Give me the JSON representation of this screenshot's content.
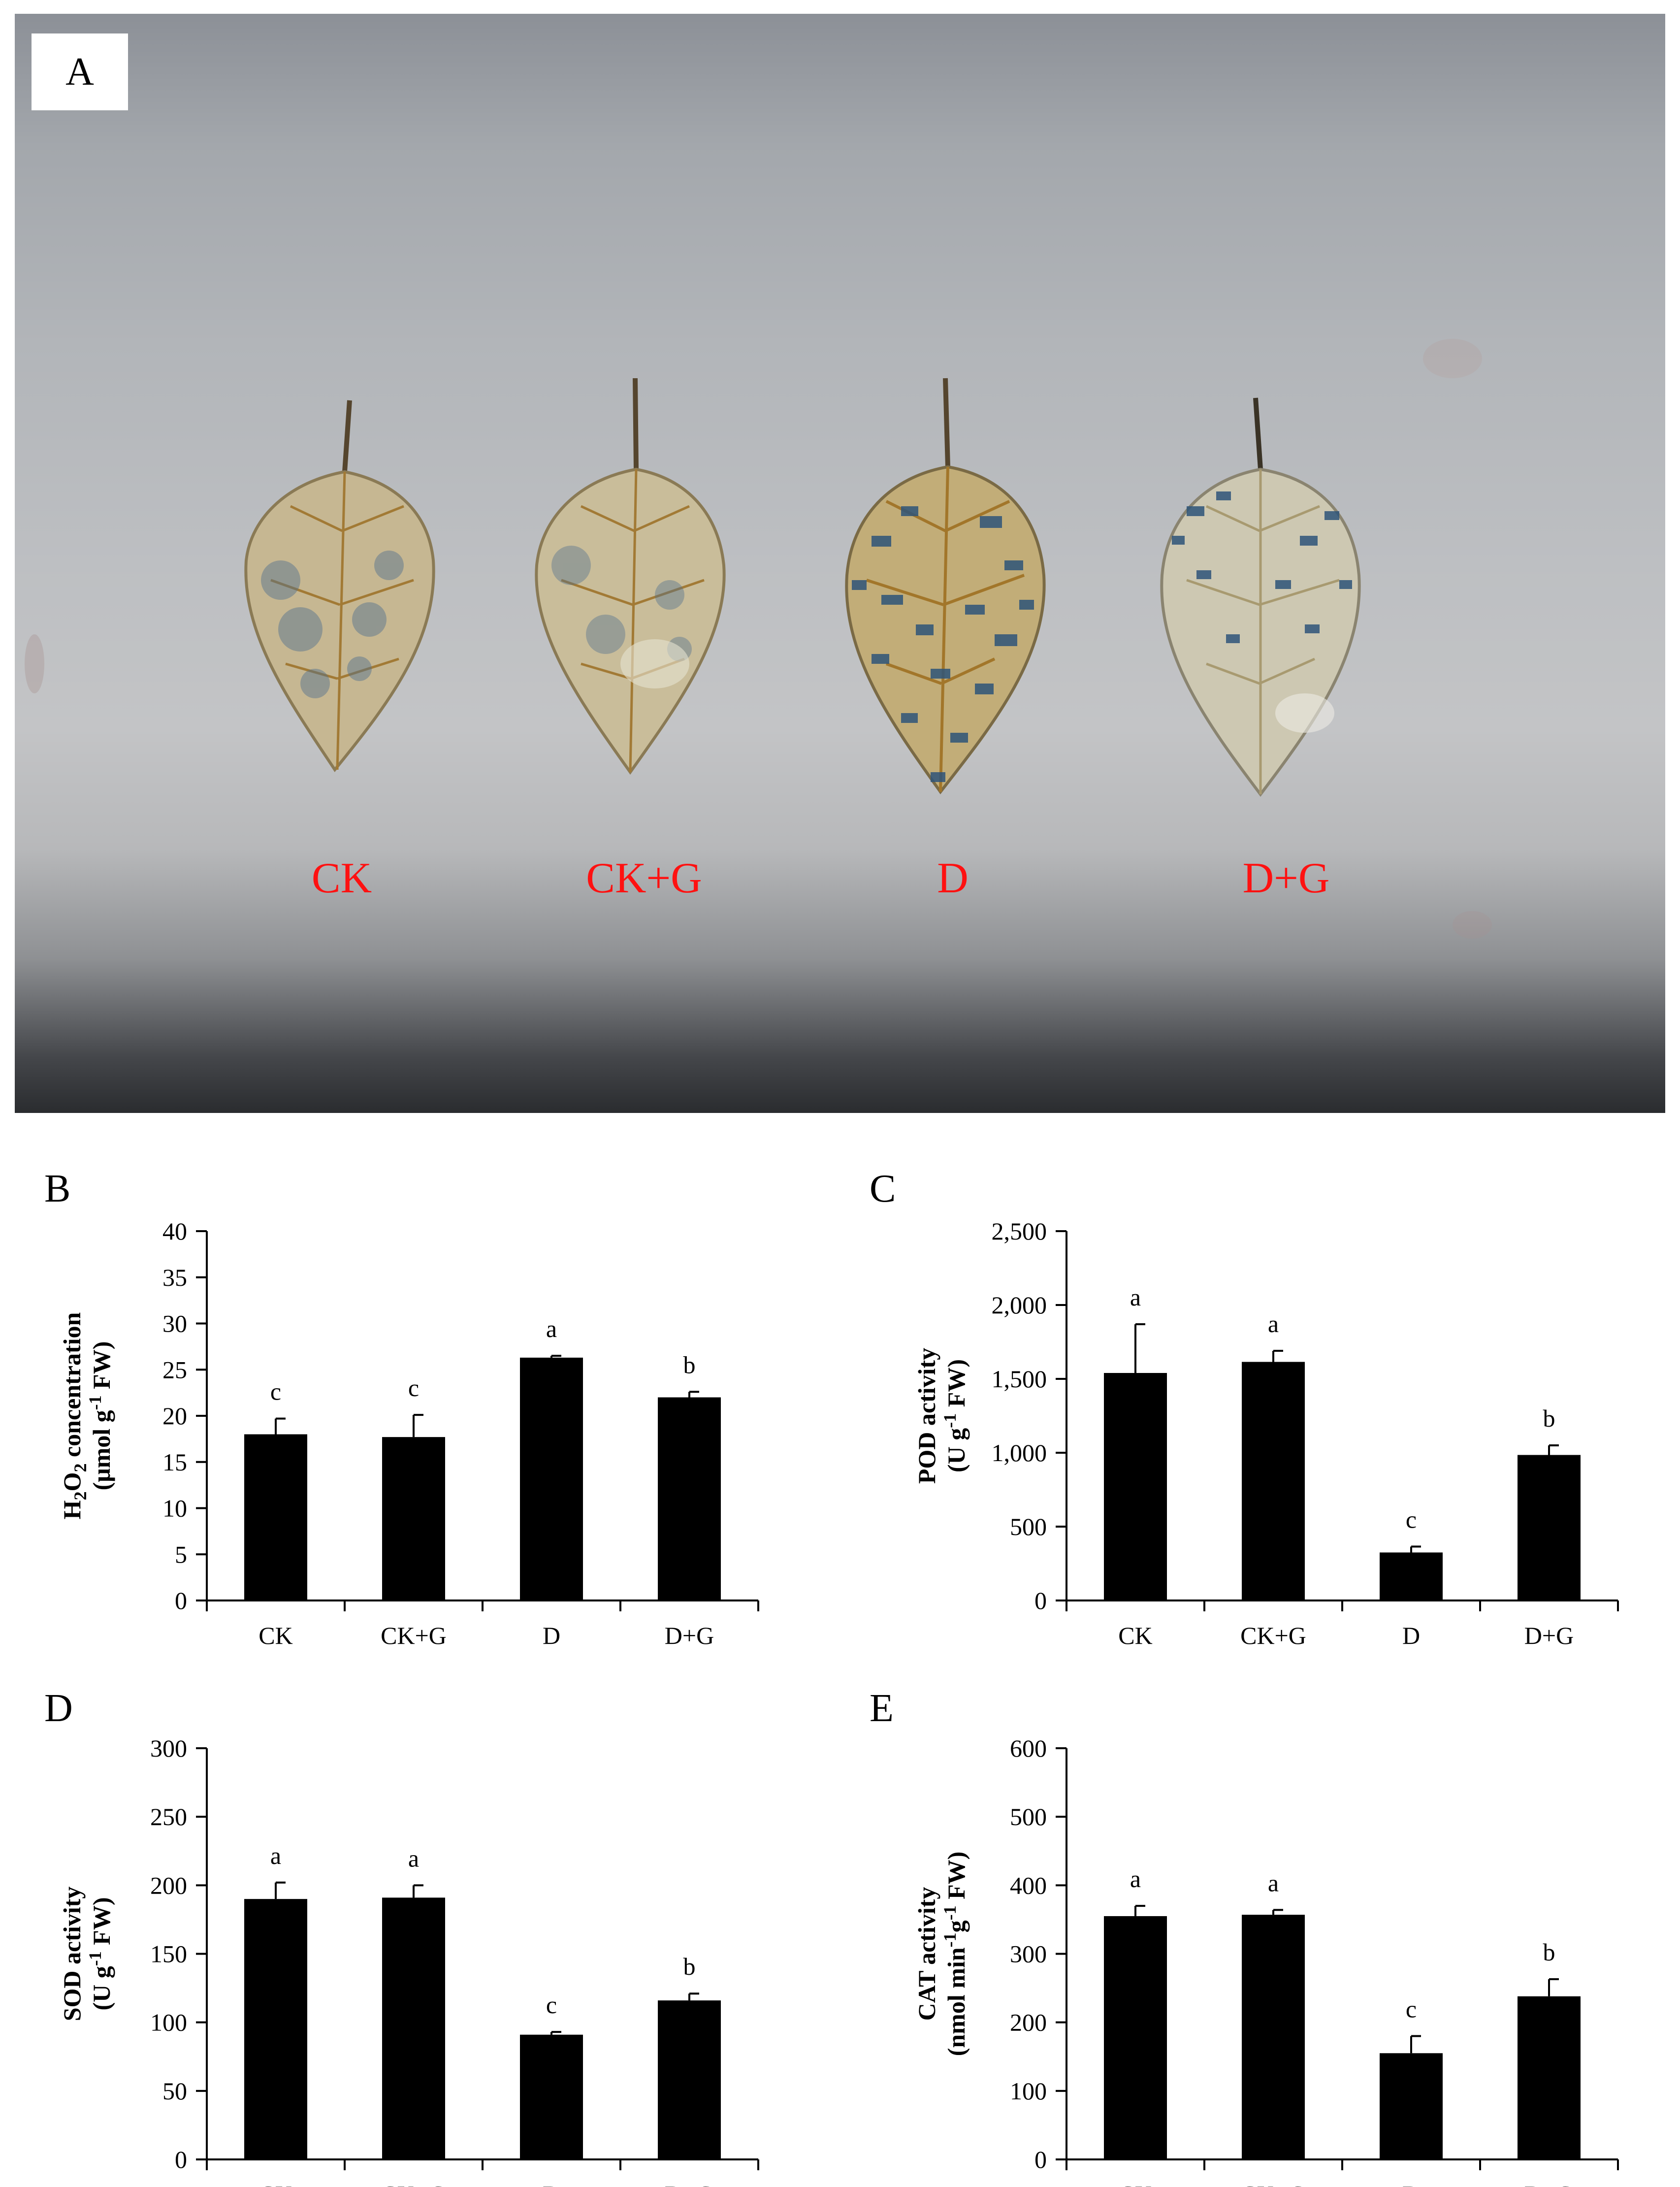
{
  "photo": {
    "panel_label": "A",
    "treatments": [
      "CK",
      "CK+G",
      "D",
      "D+G"
    ],
    "label_color": "#ff1111"
  },
  "chart_data": [
    {
      "panel_label": "B",
      "type": "bar",
      "categories": [
        "CK",
        "CK+G",
        "D",
        "D+G"
      ],
      "values": [
        18,
        17.7,
        26.3,
        22
      ],
      "errors": [
        1.7,
        2.4,
        0.2,
        0.6
      ],
      "letters": [
        "c",
        "c",
        "a",
        "b"
      ],
      "ylabel_lines": [
        [
          {
            "t": "H"
          },
          {
            "t": "2",
            "sub": true
          },
          {
            "t": "O"
          },
          {
            "t": "2",
            "sub": true
          },
          {
            "t": " concentration"
          }
        ],
        [
          {
            "t": "(μmol g"
          },
          {
            "t": "-1",
            "sup": true
          },
          {
            "t": " FW)"
          }
        ]
      ],
      "ylim": [
        0,
        40
      ],
      "yticks": [
        0,
        5,
        10,
        15,
        20,
        25,
        30,
        35,
        40
      ],
      "ytick_labels": [
        "0",
        "5",
        "10",
        "15",
        "20",
        "25",
        "30",
        "35",
        "40"
      ],
      "bar_color": "#000000",
      "grid": false
    },
    {
      "panel_label": "C",
      "type": "bar",
      "categories": [
        "CK",
        "CK+G",
        "D",
        "D+G"
      ],
      "values": [
        1540,
        1615,
        325,
        985
      ],
      "errors": [
        330,
        75,
        40,
        65
      ],
      "letters": [
        "a",
        "a",
        "c",
        "b"
      ],
      "ylabel_lines": [
        [
          {
            "t": "POD activity"
          }
        ],
        [
          {
            "t": "(U g"
          },
          {
            "t": "-1",
            "sup": true
          },
          {
            "t": " FW)"
          }
        ]
      ],
      "ylim": [
        0,
        2500
      ],
      "yticks": [
        0,
        500,
        1000,
        1500,
        2000,
        2500
      ],
      "ytick_labels": [
        "0",
        "500",
        "1,000",
        "1,500",
        "2,000",
        "2,500"
      ],
      "bar_color": "#000000",
      "grid": false
    },
    {
      "panel_label": "D",
      "type": "bar",
      "categories": [
        "CK",
        "CK+G",
        "D",
        "D+G"
      ],
      "values": [
        190,
        191,
        91,
        116
      ],
      "errors": [
        12,
        9,
        2,
        5
      ],
      "letters": [
        "a",
        "a",
        "c",
        "b"
      ],
      "ylabel_lines": [
        [
          {
            "t": "SOD activity"
          }
        ],
        [
          {
            "t": "(U g"
          },
          {
            "t": "-1",
            "sup": true
          },
          {
            "t": " FW)"
          }
        ]
      ],
      "ylim": [
        0,
        300
      ],
      "yticks": [
        0,
        50,
        100,
        150,
        200,
        250,
        300
      ],
      "ytick_labels": [
        "0",
        "50",
        "100",
        "150",
        "200",
        "250",
        "300"
      ],
      "bar_color": "#000000",
      "grid": false
    },
    {
      "panel_label": "E",
      "type": "bar",
      "categories": [
        "CK",
        "CK+G",
        "D",
        "D+G"
      ],
      "values": [
        355,
        357,
        155,
        238
      ],
      "errors": [
        15,
        7,
        25,
        25
      ],
      "letters": [
        "a",
        "a",
        "c",
        "b"
      ],
      "ylabel_lines": [
        [
          {
            "t": "CAT activity"
          }
        ],
        [
          {
            "t": "(nmol min"
          },
          {
            "t": "-1",
            "sup": true
          },
          {
            "t": "g"
          },
          {
            "t": "-1",
            "sup": true
          },
          {
            "t": " FW)"
          }
        ]
      ],
      "ylim": [
        0,
        600
      ],
      "yticks": [
        0,
        100,
        200,
        300,
        400,
        500,
        600
      ],
      "ytick_labels": [
        "0",
        "100",
        "200",
        "300",
        "400",
        "500",
        "600"
      ],
      "bar_color": "#000000",
      "grid": false
    }
  ]
}
